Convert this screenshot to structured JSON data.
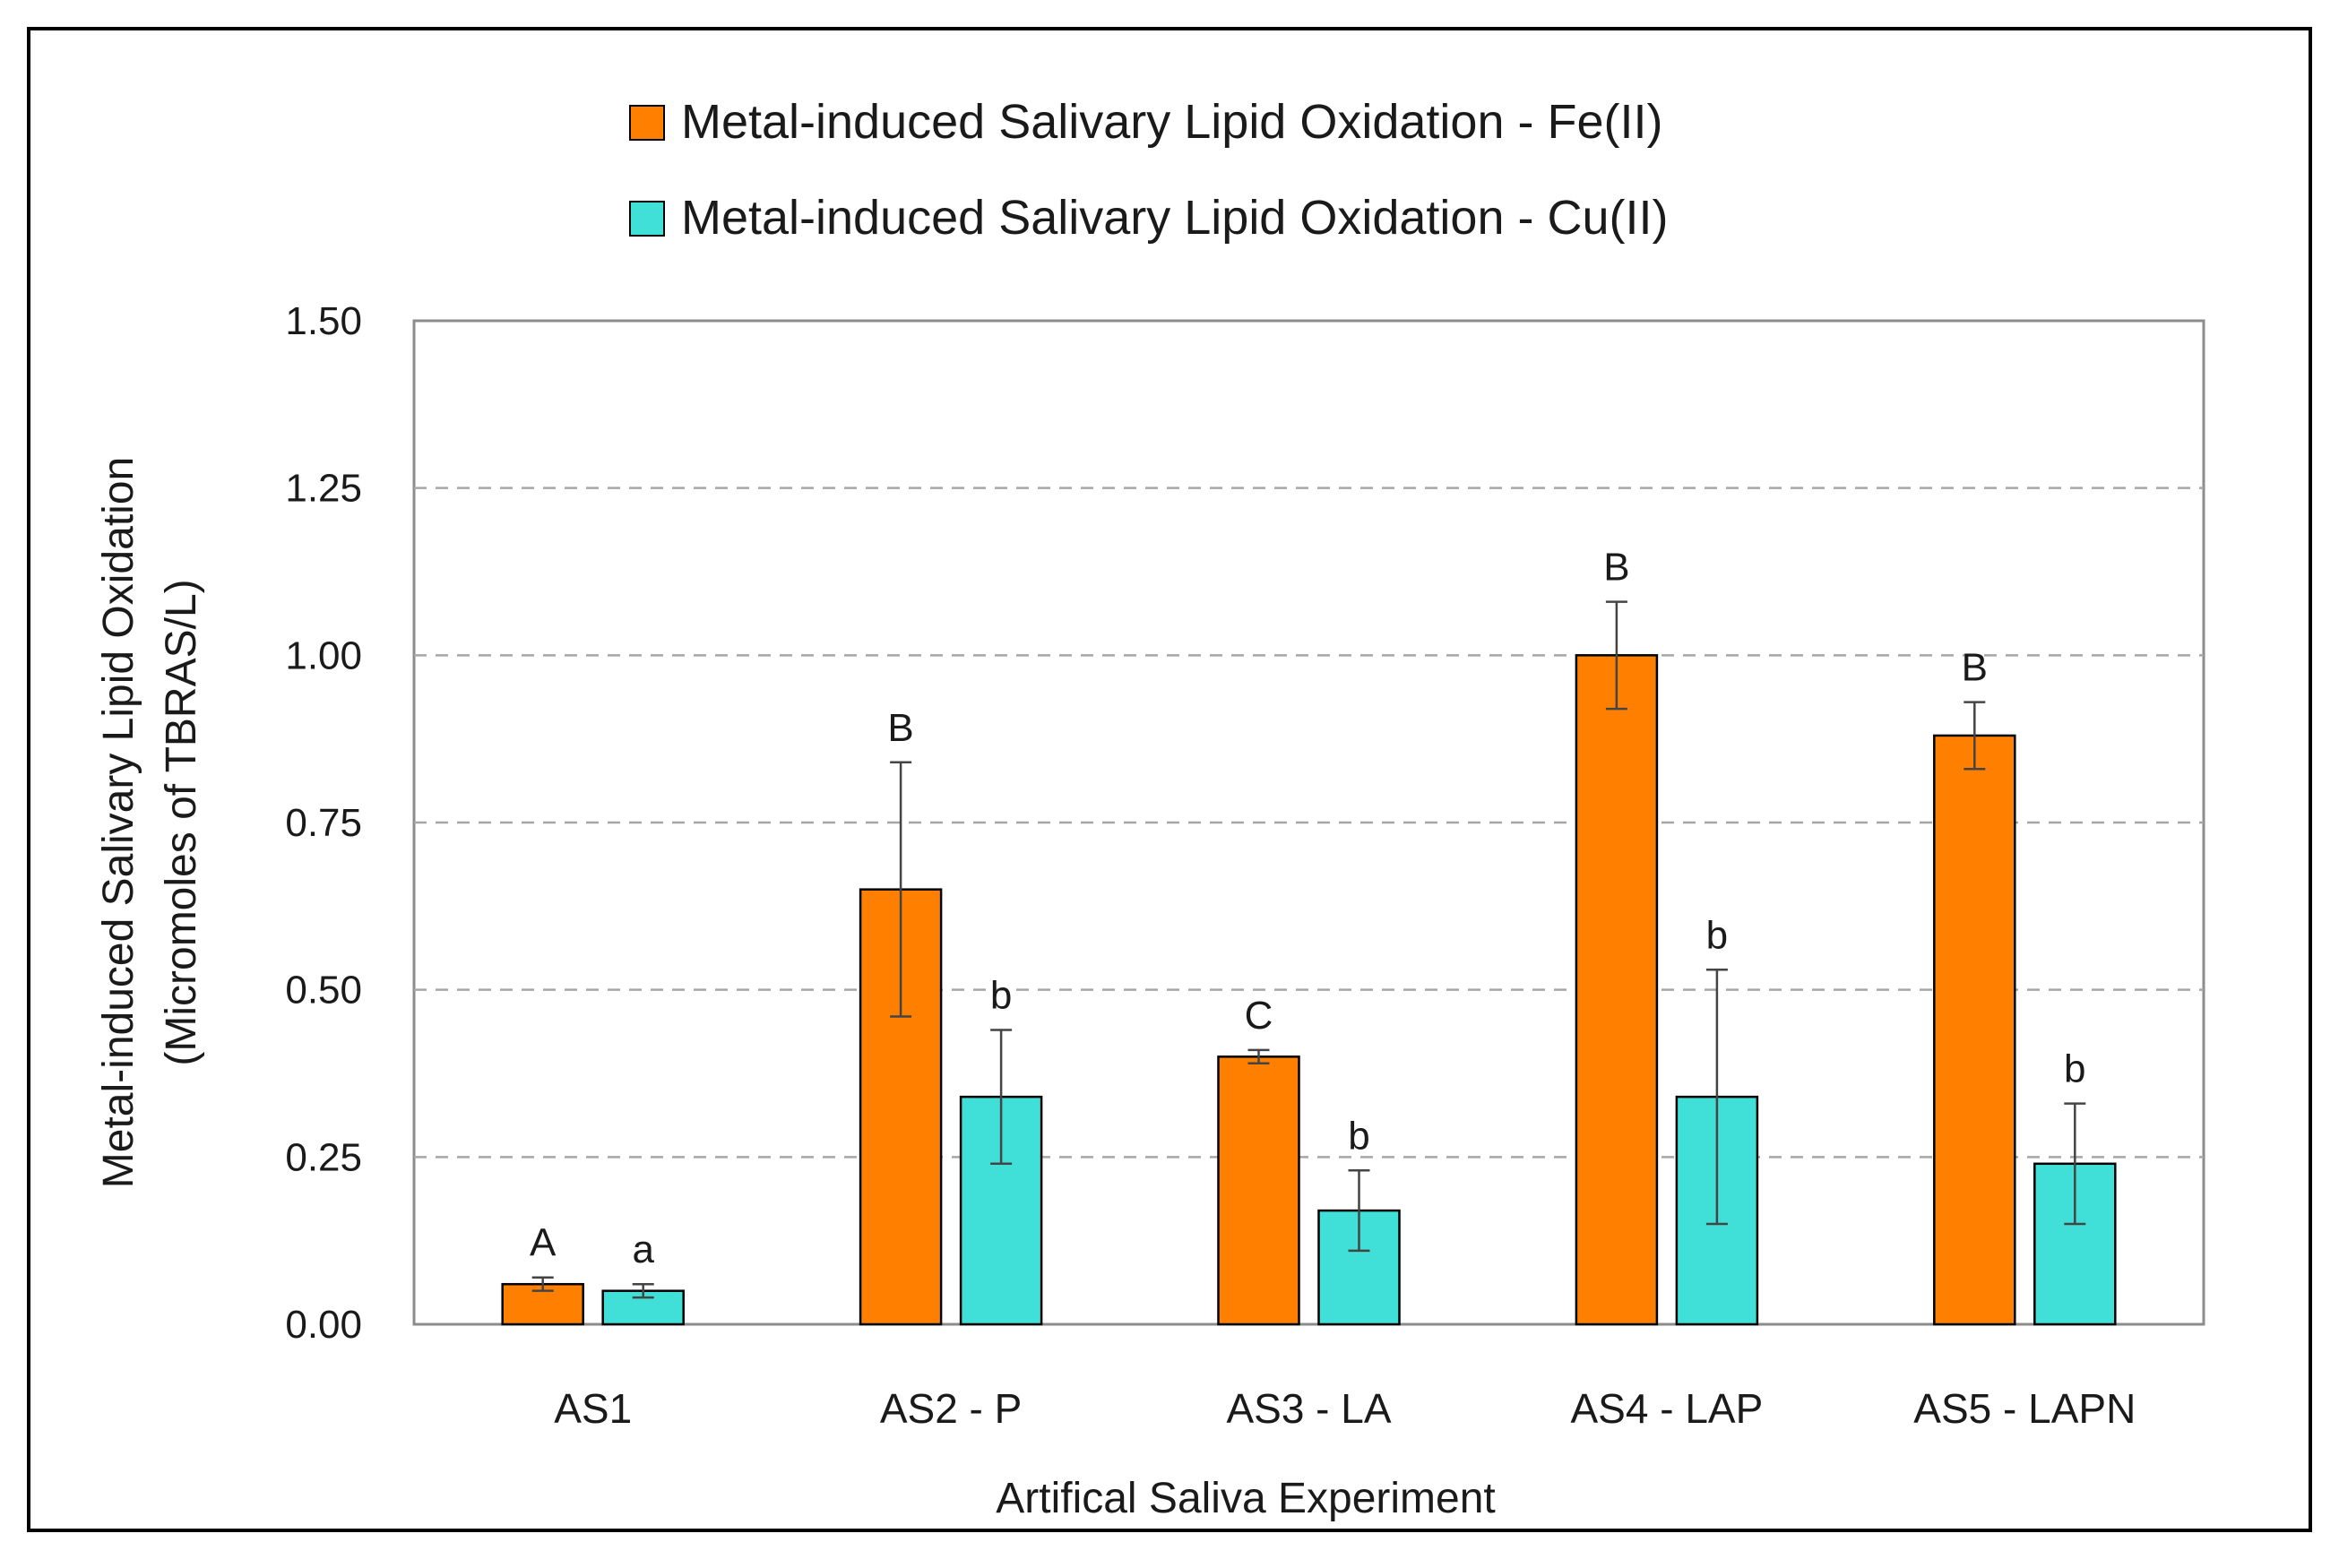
{
  "chart_data": {
    "type": "bar",
    "title": "",
    "xlabel": "Artifical Saliva Experiment",
    "ylabel_line1": "Metal-induced Salivary Lipid Oxidation",
    "ylabel_line2": "(Micromoles of TBRAS/L)",
    "ylim": [
      0,
      1.5
    ],
    "yticks": [
      "0.00",
      "0.25",
      "0.50",
      "0.75",
      "1.00",
      "1.25",
      "1.50"
    ],
    "ytick_values": [
      0,
      0.25,
      0.5,
      0.75,
      1.0,
      1.25,
      1.5
    ],
    "grid": "horizontal dashed",
    "legend_position": "top",
    "categories": [
      "AS1",
      "AS2 - P",
      "AS3 - LA",
      "AS4 - LAP",
      "AS5 - LAPN"
    ],
    "series": [
      {
        "name": "Metal-induced Salivary Lipid Oxidation - Fe(II)",
        "color": "#FF8000",
        "values": [
          0.06,
          0.65,
          0.4,
          1.0,
          0.88
        ],
        "errors": [
          0.01,
          0.19,
          0.01,
          0.08,
          0.05
        ],
        "labels": [
          "A",
          "B",
          "C",
          "B",
          "B"
        ]
      },
      {
        "name": "Metal-induced Salivary Lipid Oxidation - Cu(II)",
        "color": "#40E0D8",
        "values": [
          0.05,
          0.34,
          0.17,
          0.34,
          0.24
        ],
        "errors": [
          0.01,
          0.1,
          0.06,
          0.19,
          0.09
        ],
        "labels": [
          "a",
          "b",
          "b",
          "b",
          "b"
        ]
      }
    ]
  }
}
